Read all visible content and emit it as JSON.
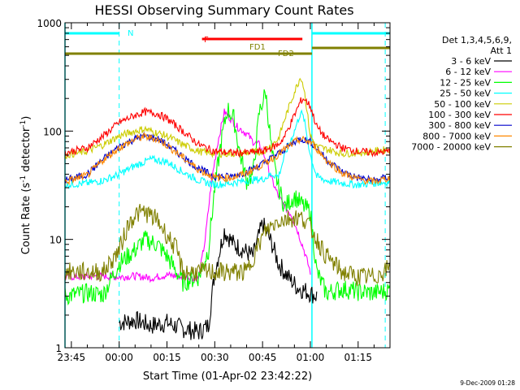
{
  "chart_data": {
    "type": "line",
    "title": "HESSI Observing Summary Count Rates",
    "xlabel": "Start Time (01-Apr-02 23:42:22)",
    "ylabel_main": "Count Rate (s",
    "ylabel_sup1": "-1",
    "ylabel_mid": " detector",
    "ylabel_sup2": "-1",
    "ylabel_end": ")",
    "y_scale": "log",
    "ylim": [
      1,
      1000
    ],
    "xlim_minutes": [
      -17,
      85
    ],
    "x_tick_minutes": [
      -15,
      0,
      15,
      30,
      45,
      60,
      75
    ],
    "x_tick_labels": [
      "23:45",
      "00:00",
      "00:15",
      "00:30",
      "00:45",
      "01:00",
      "01:15"
    ],
    "y_tick_values": [
      1,
      10,
      100,
      1000
    ],
    "y_tick_labels": [
      "1",
      "10",
      "100",
      "1000"
    ],
    "legend_title_1": "Det 1,3,4,5,6,9,",
    "legend_title_2": "Att 1",
    "timestamp": "9-Dec-2009 01:28",
    "grid": false,
    "legend_position": "right",
    "series": [
      {
        "name": "3 - 6 keV",
        "color": "#000000",
        "x": [
          0,
          5,
          10,
          15,
          20,
          25,
          28,
          30,
          33,
          36,
          39,
          42,
          45,
          48,
          50,
          53,
          56,
          59,
          62
        ],
        "y": [
          1.7,
          1.8,
          1.6,
          1.7,
          1.5,
          1.4,
          1.6,
          5,
          12,
          9,
          8,
          7,
          14,
          9,
          6,
          4.5,
          3.6,
          3.3,
          3
        ]
      },
      {
        "name": "6 - 12 keV",
        "color": "#ff00ff",
        "x": [
          -17,
          -5,
          0,
          5,
          10,
          15,
          20,
          25,
          27,
          29,
          31,
          33,
          35,
          37,
          40,
          42,
          44,
          46,
          48,
          50,
          52,
          54,
          56,
          58,
          60
        ],
        "y": [
          4.5,
          4.6,
          4.5,
          4.6,
          4.4,
          4.7,
          4.5,
          4.4,
          10,
          35,
          80,
          150,
          130,
          110,
          95,
          80,
          75,
          55,
          35,
          25,
          20,
          17,
          12,
          8,
          5
        ]
      },
      {
        "name": "12 - 25 keV",
        "color": "#00ff00",
        "x": [
          -17,
          -10,
          -5,
          0,
          5,
          8,
          12,
          15,
          20,
          25,
          28,
          30,
          32,
          34,
          36,
          38,
          40,
          42,
          44,
          46,
          48,
          50,
          52,
          55,
          58,
          60,
          62,
          65,
          70,
          75,
          80,
          85
        ],
        "y": [
          3,
          3.2,
          3.1,
          6,
          8,
          10,
          9,
          7,
          4,
          4.5,
          8,
          30,
          80,
          160,
          130,
          60,
          35,
          40,
          150,
          230,
          60,
          30,
          20,
          25,
          20,
          18,
          5,
          3.2,
          3.5,
          3.3,
          3.2,
          3.4
        ]
      },
      {
        "name": "25 - 50 keV",
        "color": "#00ffff",
        "x": [
          -17,
          -10,
          -5,
          0,
          5,
          10,
          15,
          20,
          25,
          30,
          35,
          40,
          45,
          48,
          50,
          52,
          55,
          57,
          58,
          60,
          62,
          65,
          70,
          75,
          80,
          85
        ],
        "y": [
          32,
          33,
          35,
          40,
          48,
          55,
          52,
          42,
          35,
          32,
          33,
          35,
          36,
          40,
          38,
          60,
          100,
          150,
          130,
          60,
          38,
          35,
          33,
          32,
          33,
          34
        ]
      },
      {
        "name": "50 - 100 keV",
        "color": "#cccc00",
        "x": [
          -17,
          -10,
          -5,
          0,
          5,
          8,
          10,
          15,
          20,
          25,
          30,
          35,
          40,
          45,
          48,
          50,
          52,
          55,
          57,
          58,
          60,
          62,
          65,
          70,
          75,
          80,
          85
        ],
        "y": [
          60,
          65,
          75,
          90,
          100,
          105,
          100,
          90,
          75,
          65,
          62,
          62,
          63,
          65,
          75,
          85,
          130,
          230,
          320,
          250,
          90,
          72,
          68,
          62,
          63,
          65,
          68
        ]
      },
      {
        "name": "100 - 300 keV",
        "color": "#ff0000",
        "x": [
          -17,
          -10,
          -5,
          0,
          5,
          8,
          12,
          15,
          20,
          25,
          30,
          35,
          40,
          45,
          50,
          52,
          55,
          57,
          58,
          60,
          62,
          65,
          70,
          75,
          80,
          85
        ],
        "y": [
          63,
          70,
          90,
          120,
          140,
          150,
          145,
          130,
          100,
          75,
          65,
          63,
          63,
          65,
          75,
          90,
          140,
          190,
          200,
          170,
          110,
          85,
          70,
          65,
          63,
          65
        ]
      },
      {
        "name": "300 - 800 keV",
        "color": "#0000cc",
        "x": [
          -17,
          -10,
          -5,
          0,
          5,
          8,
          12,
          15,
          20,
          25,
          30,
          35,
          40,
          45,
          50,
          55,
          57,
          60,
          62,
          65,
          70,
          75,
          80,
          85
        ],
        "y": [
          35,
          40,
          55,
          72,
          85,
          90,
          85,
          75,
          58,
          45,
          38,
          38,
          42,
          50,
          62,
          80,
          85,
          80,
          70,
          55,
          42,
          37,
          35,
          38
        ]
      },
      {
        "name": "800 - 7000 keV",
        "color": "#ff8800",
        "x": [
          -17,
          -10,
          -5,
          0,
          5,
          8,
          12,
          15,
          20,
          25,
          30,
          35,
          40,
          45,
          50,
          55,
          57,
          60,
          62,
          65,
          70,
          75,
          80,
          85
        ],
        "y": [
          34,
          39,
          54,
          70,
          84,
          89,
          84,
          74,
          57,
          44,
          37,
          37,
          41,
          49,
          61,
          79,
          84,
          79,
          69,
          54,
          41,
          36,
          34,
          37
        ]
      },
      {
        "name": "7000 - 20000 keV",
        "color": "#808000",
        "x": [
          -17,
          -10,
          -5,
          -3,
          0,
          3,
          5,
          8,
          12,
          15,
          18,
          20,
          25,
          30,
          33,
          36,
          40,
          43,
          46,
          50,
          55,
          58,
          60,
          62,
          65,
          70,
          75,
          80,
          85
        ],
        "y": [
          5,
          5,
          5,
          6,
          8,
          14,
          17,
          18,
          15,
          11,
          8,
          5,
          5,
          5,
          5,
          5,
          5,
          8,
          12,
          15,
          16,
          15.5,
          13,
          10,
          7,
          5,
          4.5,
          4.5,
          5.5
        ]
      }
    ],
    "annotations": {
      "n_label": "N",
      "f_label": "F",
      "fd1_label": "FD1",
      "fd2_label": "FD2",
      "bars": [
        {
          "label_key": "N",
          "color": "#00ffff",
          "segments": [
            [
              -17,
              0
            ],
            [
              60.5,
              85
            ]
          ]
        },
        {
          "label_key": "F",
          "color": "#ff0000",
          "segments": [
            [
              26,
              57.5
            ]
          ]
        },
        {
          "label_key": "FD",
          "color": "#808000",
          "segments": [
            [
              -17,
              60.5
            ],
            [
              60.5,
              85
            ]
          ]
        }
      ],
      "vlines_cyan_solid": [
        -17,
        60.5
      ],
      "vlines_cyan_dashed": [
        0,
        83.5
      ]
    }
  }
}
